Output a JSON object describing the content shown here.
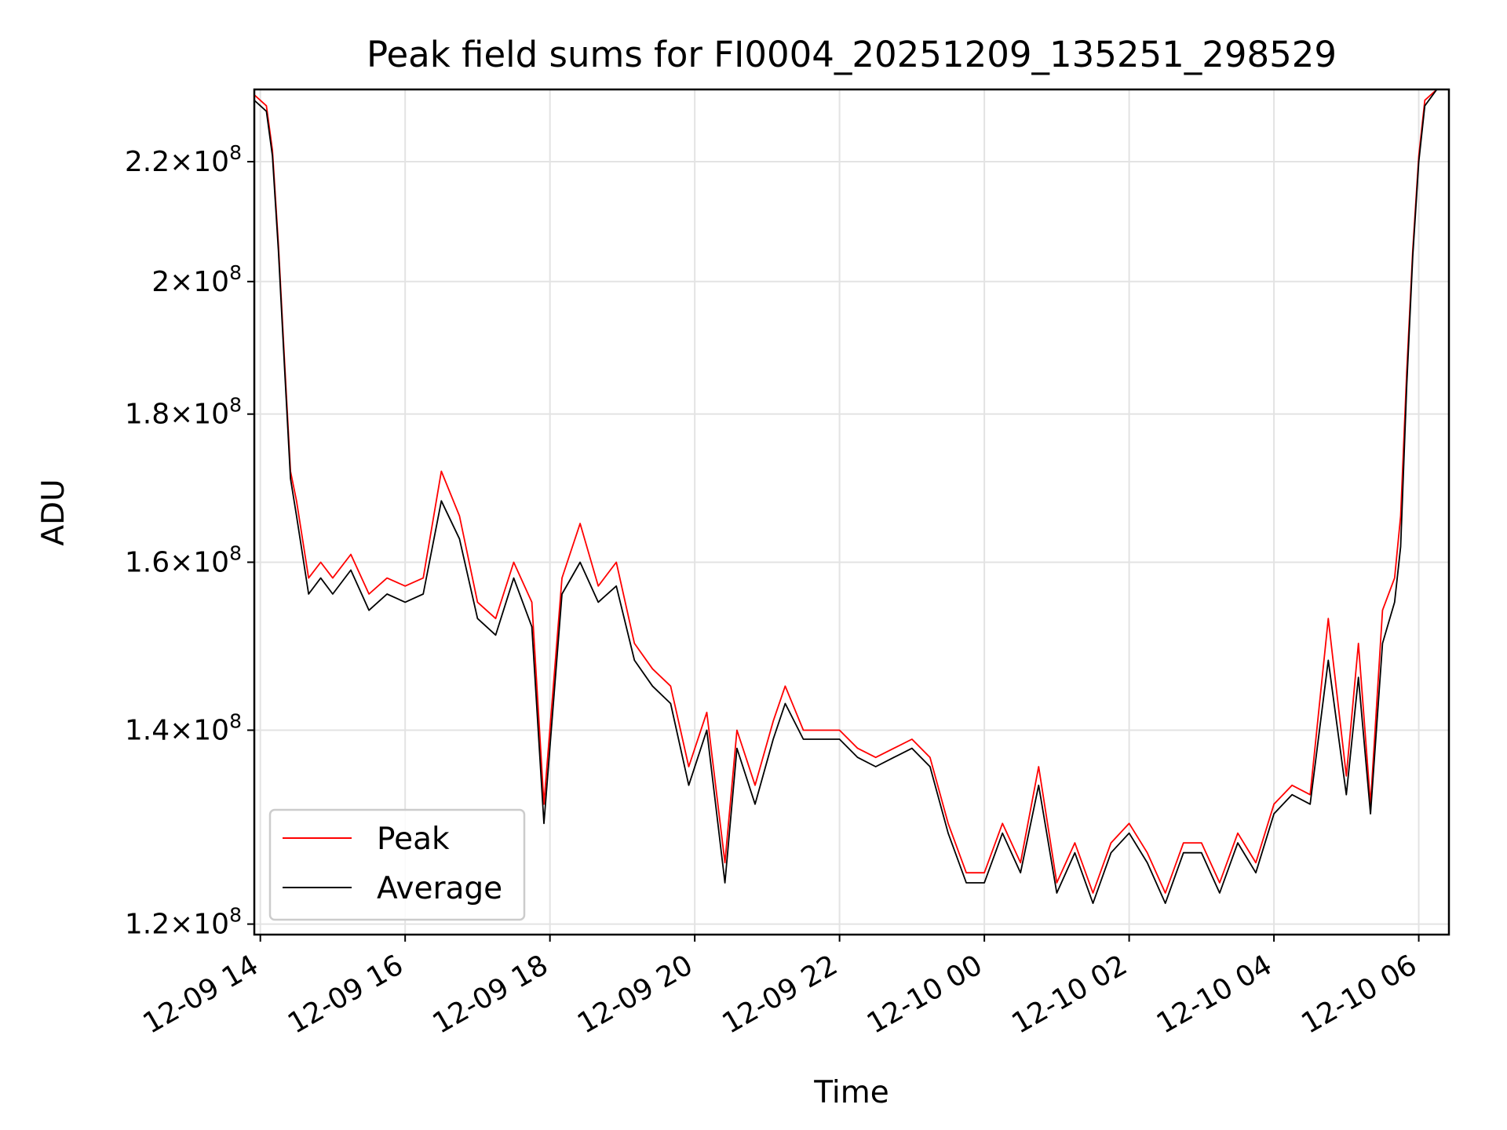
{
  "chart_data": {
    "type": "line",
    "title": "Peak field sums for FI0004_20251209_135251_298529",
    "xlabel": "Time",
    "ylabel": "ADU",
    "y_scale": "log",
    "xlim": [
      "2025-12-09 13:55",
      "2025-12-10 06:25"
    ],
    "ylim": [
      119000000,
      233000000
    ],
    "x_tick_labels": [
      "12-09 14",
      "12-09 16",
      "12-09 18",
      "12-09 20",
      "12-09 22",
      "12-10 00",
      "12-10 02",
      "12-10 04",
      "12-10 06"
    ],
    "y_ticks": [
      120000000,
      140000000,
      160000000,
      180000000,
      200000000,
      220000000
    ],
    "y_tick_labels": [
      {
        "mant": "1.2",
        "exp": "8"
      },
      {
        "mant": "1.4",
        "exp": "8"
      },
      {
        "mant": "1.6",
        "exp": "8"
      },
      {
        "mant": "1.8",
        "exp": "8"
      },
      {
        "mant": "2",
        "exp": "8"
      },
      {
        "mant": "2.2",
        "exp": "8"
      }
    ],
    "grid": true,
    "legend_position": "lower-left",
    "x": [
      "2025-12-09 13:55",
      "2025-12-09 14:05",
      "2025-12-09 14:10",
      "2025-12-09 14:15",
      "2025-12-09 14:20",
      "2025-12-09 14:25",
      "2025-12-09 14:30",
      "2025-12-09 14:40",
      "2025-12-09 14:50",
      "2025-12-09 15:00",
      "2025-12-09 15:15",
      "2025-12-09 15:30",
      "2025-12-09 15:45",
      "2025-12-09 16:00",
      "2025-12-09 16:15",
      "2025-12-09 16:30",
      "2025-12-09 16:45",
      "2025-12-09 17:00",
      "2025-12-09 17:15",
      "2025-12-09 17:30",
      "2025-12-09 17:45",
      "2025-12-09 17:55",
      "2025-12-09 18:10",
      "2025-12-09 18:25",
      "2025-12-09 18:40",
      "2025-12-09 18:55",
      "2025-12-09 19:10",
      "2025-12-09 19:25",
      "2025-12-09 19:40",
      "2025-12-09 19:55",
      "2025-12-09 20:10",
      "2025-12-09 20:25",
      "2025-12-09 20:35",
      "2025-12-09 20:50",
      "2025-12-09 21:05",
      "2025-12-09 21:15",
      "2025-12-09 21:30",
      "2025-12-09 21:45",
      "2025-12-09 22:00",
      "2025-12-09 22:15",
      "2025-12-09 22:30",
      "2025-12-09 22:45",
      "2025-12-09 23:00",
      "2025-12-09 23:15",
      "2025-12-09 23:30",
      "2025-12-09 23:45",
      "2025-12-10 00:00",
      "2025-12-10 00:15",
      "2025-12-10 00:30",
      "2025-12-10 00:45",
      "2025-12-10 01:00",
      "2025-12-10 01:15",
      "2025-12-10 01:30",
      "2025-12-10 01:45",
      "2025-12-10 02:00",
      "2025-12-10 02:15",
      "2025-12-10 02:30",
      "2025-12-10 02:45",
      "2025-12-10 03:00",
      "2025-12-10 03:15",
      "2025-12-10 03:30",
      "2025-12-10 03:45",
      "2025-12-10 04:00",
      "2025-12-10 04:15",
      "2025-12-10 04:30",
      "2025-12-10 04:45",
      "2025-12-10 05:00",
      "2025-12-10 05:10",
      "2025-12-10 05:20",
      "2025-12-10 05:30",
      "2025-12-10 05:40",
      "2025-12-10 05:45",
      "2025-12-10 05:50",
      "2025-12-10 05:55",
      "2025-12-10 06:00",
      "2025-12-10 06:05",
      "2025-12-10 06:15",
      "2025-12-10 06:25"
    ],
    "series": [
      {
        "name": "Peak",
        "color": "#ff0000",
        "values": [
          232000000,
          230000000,
          222000000,
          206000000,
          188000000,
          172000000,
          168000000,
          158000000,
          160000000,
          158000000,
          161000000,
          156000000,
          158000000,
          157000000,
          158000000,
          172000000,
          166000000,
          155000000,
          153000000,
          160000000,
          155000000,
          132000000,
          158000000,
          165000000,
          157000000,
          160000000,
          150000000,
          147000000,
          145000000,
          136000000,
          142000000,
          126000000,
          140000000,
          134000000,
          141000000,
          145000000,
          140000000,
          140000000,
          140000000,
          138000000,
          137000000,
          138000000,
          139000000,
          137000000,
          130000000,
          125000000,
          125000000,
          130000000,
          126000000,
          136000000,
          124000000,
          128000000,
          123000000,
          128000000,
          130000000,
          127000000,
          123000000,
          128000000,
          128000000,
          124000000,
          129000000,
          126000000,
          132000000,
          134000000,
          133000000,
          153000000,
          135000000,
          150000000,
          132000000,
          154000000,
          158000000,
          166000000,
          186000000,
          205000000,
          221000000,
          231000000,
          233000000,
          233000000
        ]
      },
      {
        "name": "Average",
        "color": "#000000",
        "values": [
          231000000,
          229000000,
          221000000,
          205000000,
          187000000,
          171000000,
          166000000,
          156000000,
          158000000,
          156000000,
          159000000,
          154000000,
          156000000,
          155000000,
          156000000,
          168000000,
          163000000,
          153000000,
          151000000,
          158000000,
          152000000,
          130000000,
          156000000,
          160000000,
          155000000,
          157000000,
          148000000,
          145000000,
          143000000,
          134000000,
          140000000,
          124000000,
          138000000,
          132000000,
          139000000,
          143000000,
          139000000,
          139000000,
          139000000,
          137000000,
          136000000,
          137000000,
          138000000,
          136000000,
          129000000,
          124000000,
          124000000,
          129000000,
          125000000,
          134000000,
          123000000,
          127000000,
          122000000,
          127000000,
          129000000,
          126000000,
          122000000,
          127000000,
          127000000,
          123000000,
          128000000,
          125000000,
          131000000,
          133000000,
          132000000,
          148000000,
          133000000,
          146000000,
          131000000,
          150000000,
          155000000,
          162000000,
          184000000,
          204000000,
          220000000,
          230000000,
          233000000,
          233000000
        ]
      }
    ]
  }
}
